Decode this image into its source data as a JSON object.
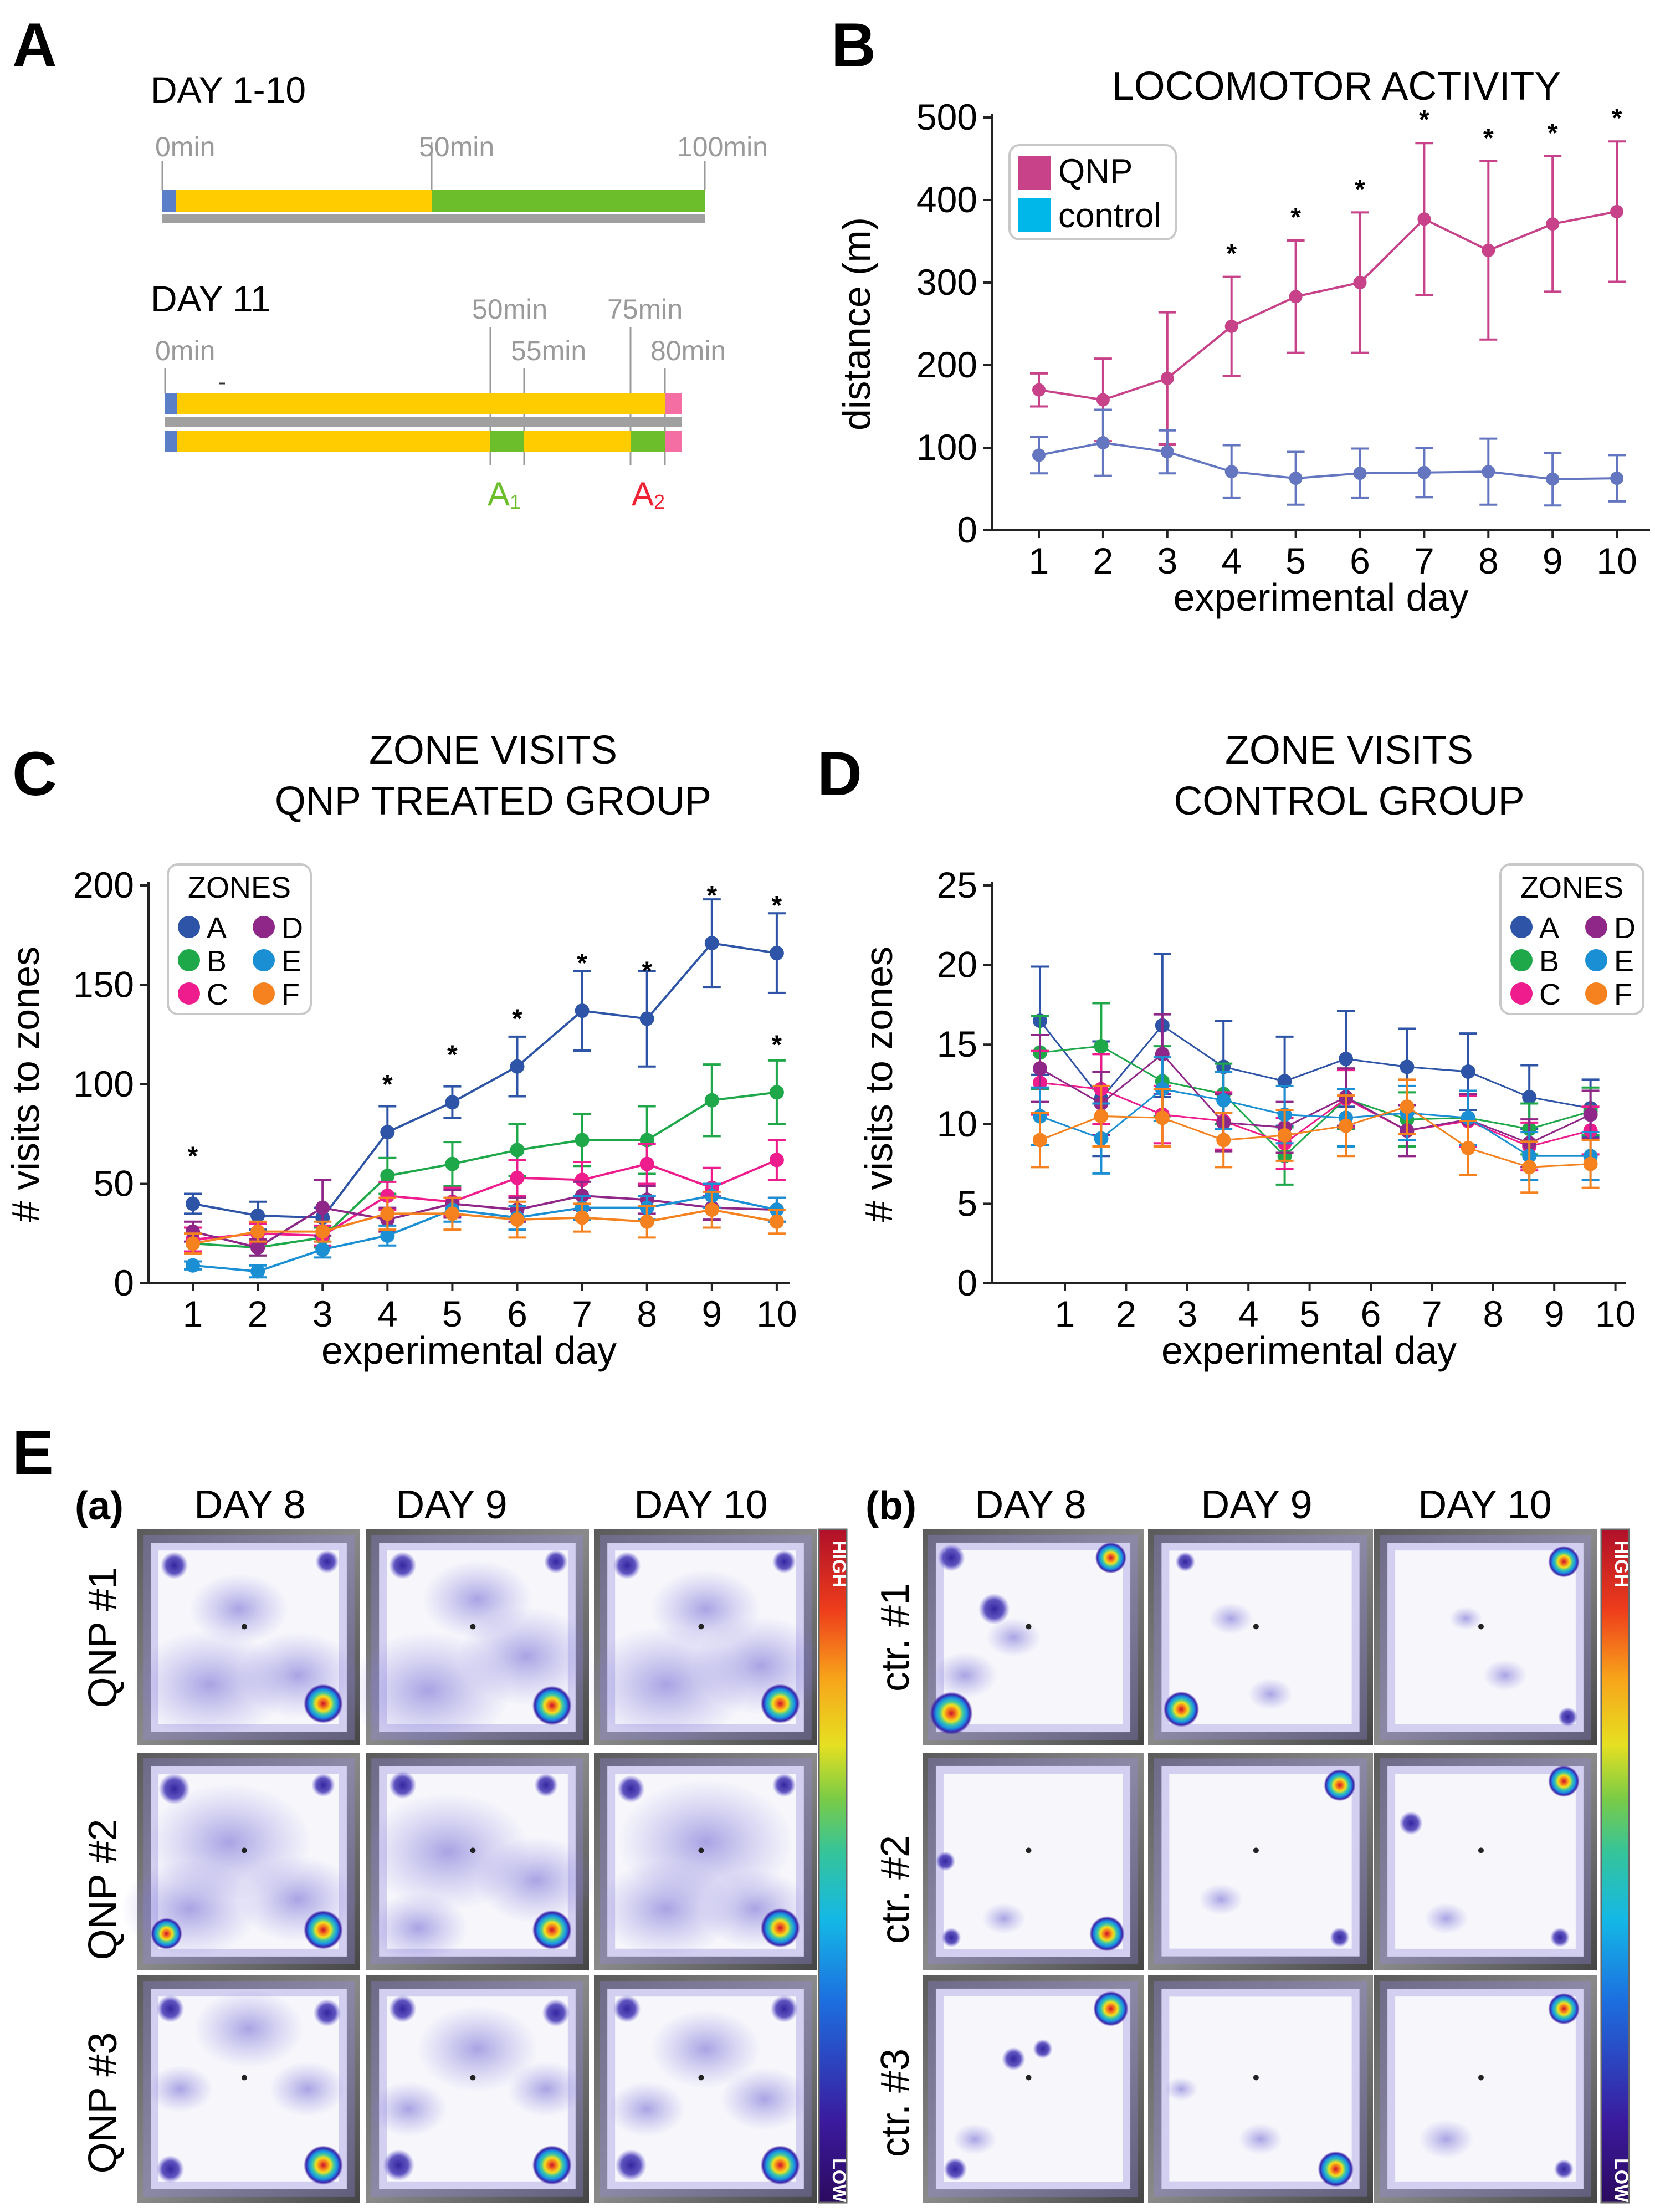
{
  "panels": {
    "A": "A",
    "B": "B",
    "C": "C",
    "D": "D",
    "E": "E"
  },
  "panel_a": {
    "title1": "DAY 1-10",
    "t1": [
      "0min",
      "50min",
      "100min"
    ],
    "title2": "DAY 11",
    "t2": [
      "0min",
      "50min",
      "55min",
      "75min",
      "80min"
    ],
    "a1_main": "A",
    "a1_sub": "1",
    "a2_main": "A",
    "a2_sub": "2"
  },
  "panel_e": {
    "sub_a": "(a)",
    "sub_b": "(b)",
    "days": [
      "DAY 8",
      "DAY 9",
      "DAY 10"
    ],
    "rows_qnp": [
      "QNP #1",
      "QNP #2",
      "QNP #3"
    ],
    "rows_ctr": [
      "ctr. #1",
      "ctr. #2",
      "ctr. #3"
    ],
    "colorbar": {
      "high": "HIGH",
      "low": "LOW"
    }
  },
  "colors": {
    "qnp": "#c8428a",
    "control": "#6476c0",
    "cyan": "#00b7ea",
    "A": "#2d54a6",
    "B": "#1fa84a",
    "C": "#ee1c8c",
    "D": "#8e2787",
    "E": "#1b8fd3",
    "F": "#f5821f",
    "yellow": "#ffcc00",
    "green": "#6cbe2b",
    "blue": "#5b7ec8",
    "pink": "#f46ea3"
  },
  "chart_data": [
    {
      "type": "line",
      "title": "LOCOMOTOR ACTIVITY",
      "xlabel": "experimental day",
      "ylabel": "distance (m)",
      "ylim": [
        0,
        500
      ],
      "yticks": [
        0,
        100,
        200,
        300,
        400,
        500
      ],
      "x": [
        1,
        2,
        3,
        4,
        5,
        6,
        7,
        8,
        9,
        10
      ],
      "legend": "top-left",
      "legend_labels": [
        "QNP",
        "control"
      ],
      "series": [
        {
          "name": "QNP",
          "values": [
            170,
            158,
            184,
            247,
            283,
            300,
            377,
            339,
            371,
            386
          ],
          "err": [
            20,
            50,
            80,
            60,
            68,
            85,
            92,
            108,
            82,
            85
          ]
        },
        {
          "name": "control",
          "values": [
            91,
            106,
            95,
            71,
            63,
            69,
            70,
            71,
            62,
            63
          ],
          "err": [
            22,
            40,
            26,
            32,
            32,
            30,
            30,
            40,
            32,
            28
          ]
        }
      ],
      "significance": [
        4,
        5,
        6,
        7,
        8,
        9,
        10
      ],
      "sig_mark": "*"
    },
    {
      "type": "line",
      "title": [
        "ZONE VISITS",
        "QNP TREATED GROUP"
      ],
      "xlabel": "experimental day",
      "ylabel": "# visits to zones",
      "ylim": [
        0,
        200
      ],
      "yticks": [
        0,
        50,
        100,
        150,
        200
      ],
      "x": [
        1,
        2,
        3,
        4,
        5,
        6,
        7,
        8,
        9,
        10
      ],
      "legend": "top-left",
      "legend_title": "ZONES",
      "series": [
        {
          "name": "A",
          "values": [
            40,
            34,
            33,
            76,
            91,
            109,
            137,
            133,
            171,
            166
          ],
          "err": [
            5,
            7,
            5,
            13,
            8,
            15,
            20,
            24,
            22,
            20
          ]
        },
        {
          "name": "B",
          "values": [
            20,
            18,
            23,
            54,
            60,
            67,
            72,
            72,
            92,
            96
          ],
          "err": [
            5,
            4,
            5,
            9,
            11,
            13,
            13,
            17,
            18,
            16
          ]
        },
        {
          "name": "C",
          "values": [
            22,
            25,
            24,
            44,
            41,
            53,
            52,
            60,
            48,
            62
          ],
          "err": [
            6,
            5,
            5,
            7,
            7,
            9,
            9,
            10,
            10,
            10
          ]
        },
        {
          "name": "D",
          "values": [
            26,
            18,
            38,
            32,
            40,
            37,
            44,
            42,
            38,
            37
          ],
          "err": [
            5,
            4,
            14,
            6,
            7,
            6,
            7,
            7,
            6,
            6
          ]
        },
        {
          "name": "E",
          "values": [
            9,
            6,
            17,
            24,
            37,
            33,
            38,
            38,
            44,
            37
          ],
          "err": [
            2,
            3,
            4,
            5,
            6,
            6,
            6,
            6,
            6,
            6
          ]
        },
        {
          "name": "F",
          "values": [
            20,
            26,
            26,
            35,
            35,
            32,
            33,
            31,
            37,
            31
          ],
          "err": [
            5,
            5,
            5,
            8,
            8,
            9,
            7,
            8,
            9,
            6
          ]
        }
      ],
      "significance": [
        {
          "x": 1,
          "y": 40
        },
        {
          "x": 4,
          "y": 76
        },
        {
          "x": 5,
          "y": 91
        },
        {
          "x": 6,
          "y": 109
        },
        {
          "x": 7,
          "y": 137
        },
        {
          "x": 8,
          "y": 133
        },
        {
          "x": 9,
          "y": 171
        },
        {
          "x": 10,
          "y": 166
        },
        {
          "x": 10,
          "y": 96
        }
      ],
      "sig_mark": "*"
    },
    {
      "type": "line",
      "title": [
        "ZONE VISITS",
        "CONTROL GROUP"
      ],
      "xlabel": "experimental day",
      "ylabel": "# visits to zones",
      "ylim": [
        0,
        25
      ],
      "yticks": [
        0,
        5,
        10,
        15,
        20,
        25
      ],
      "x": [
        1,
        2,
        3,
        4,
        5,
        6,
        7,
        8,
        9,
        10
      ],
      "legend": "top-right",
      "legend_title": "ZONES",
      "series": [
        {
          "name": "A",
          "values": [
            16.5,
            11.6,
            16.2,
            13.6,
            12.7,
            14.1,
            13.6,
            13.3,
            11.7,
            11.0
          ],
          "err": [
            3.4,
            3.6,
            4.5,
            2.9,
            2.8,
            3.0,
            2.4,
            2.4,
            2.0,
            1.8
          ]
        },
        {
          "name": "B",
          "values": [
            14.5,
            14.9,
            12.7,
            11.9,
            8.0,
            11.6,
            10.3,
            10.4,
            9.7,
            10.8
          ],
          "err": [
            2.3,
            2.7,
            2.2,
            1.9,
            1.8,
            1.9,
            1.7,
            1.7,
            1.6,
            1.5
          ]
        },
        {
          "name": "C",
          "values": [
            12.6,
            12.2,
            10.6,
            10.2,
            8.8,
            11.6,
            9.6,
            10.2,
            8.6,
            9.6
          ],
          "err": [
            2.0,
            2.2,
            1.8,
            1.8,
            1.6,
            1.8,
            1.6,
            1.6,
            1.5,
            1.5
          ]
        },
        {
          "name": "D",
          "values": [
            13.5,
            11.3,
            14.4,
            10.1,
            9.8,
            11.7,
            9.6,
            10.3,
            8.8,
            10.6
          ],
          "err": [
            2.1,
            2.0,
            2.5,
            1.8,
            1.6,
            1.8,
            1.6,
            1.6,
            1.5,
            1.5
          ]
        },
        {
          "name": "E",
          "values": [
            10.5,
            9.1,
            12.2,
            11.5,
            10.6,
            10.4,
            10.7,
            10.4,
            8.0,
            8.0
          ],
          "err": [
            1.8,
            2.2,
            2.0,
            1.8,
            1.8,
            1.8,
            1.7,
            1.7,
            1.5,
            1.5
          ]
        },
        {
          "name": "F",
          "values": [
            9.0,
            10.5,
            10.4,
            9.0,
            9.3,
            9.9,
            11.1,
            8.5,
            7.3,
            7.5
          ],
          "err": [
            1.7,
            1.9,
            1.8,
            1.7,
            1.6,
            1.9,
            1.7,
            1.7,
            1.6,
            1.5
          ]
        }
      ]
    }
  ]
}
